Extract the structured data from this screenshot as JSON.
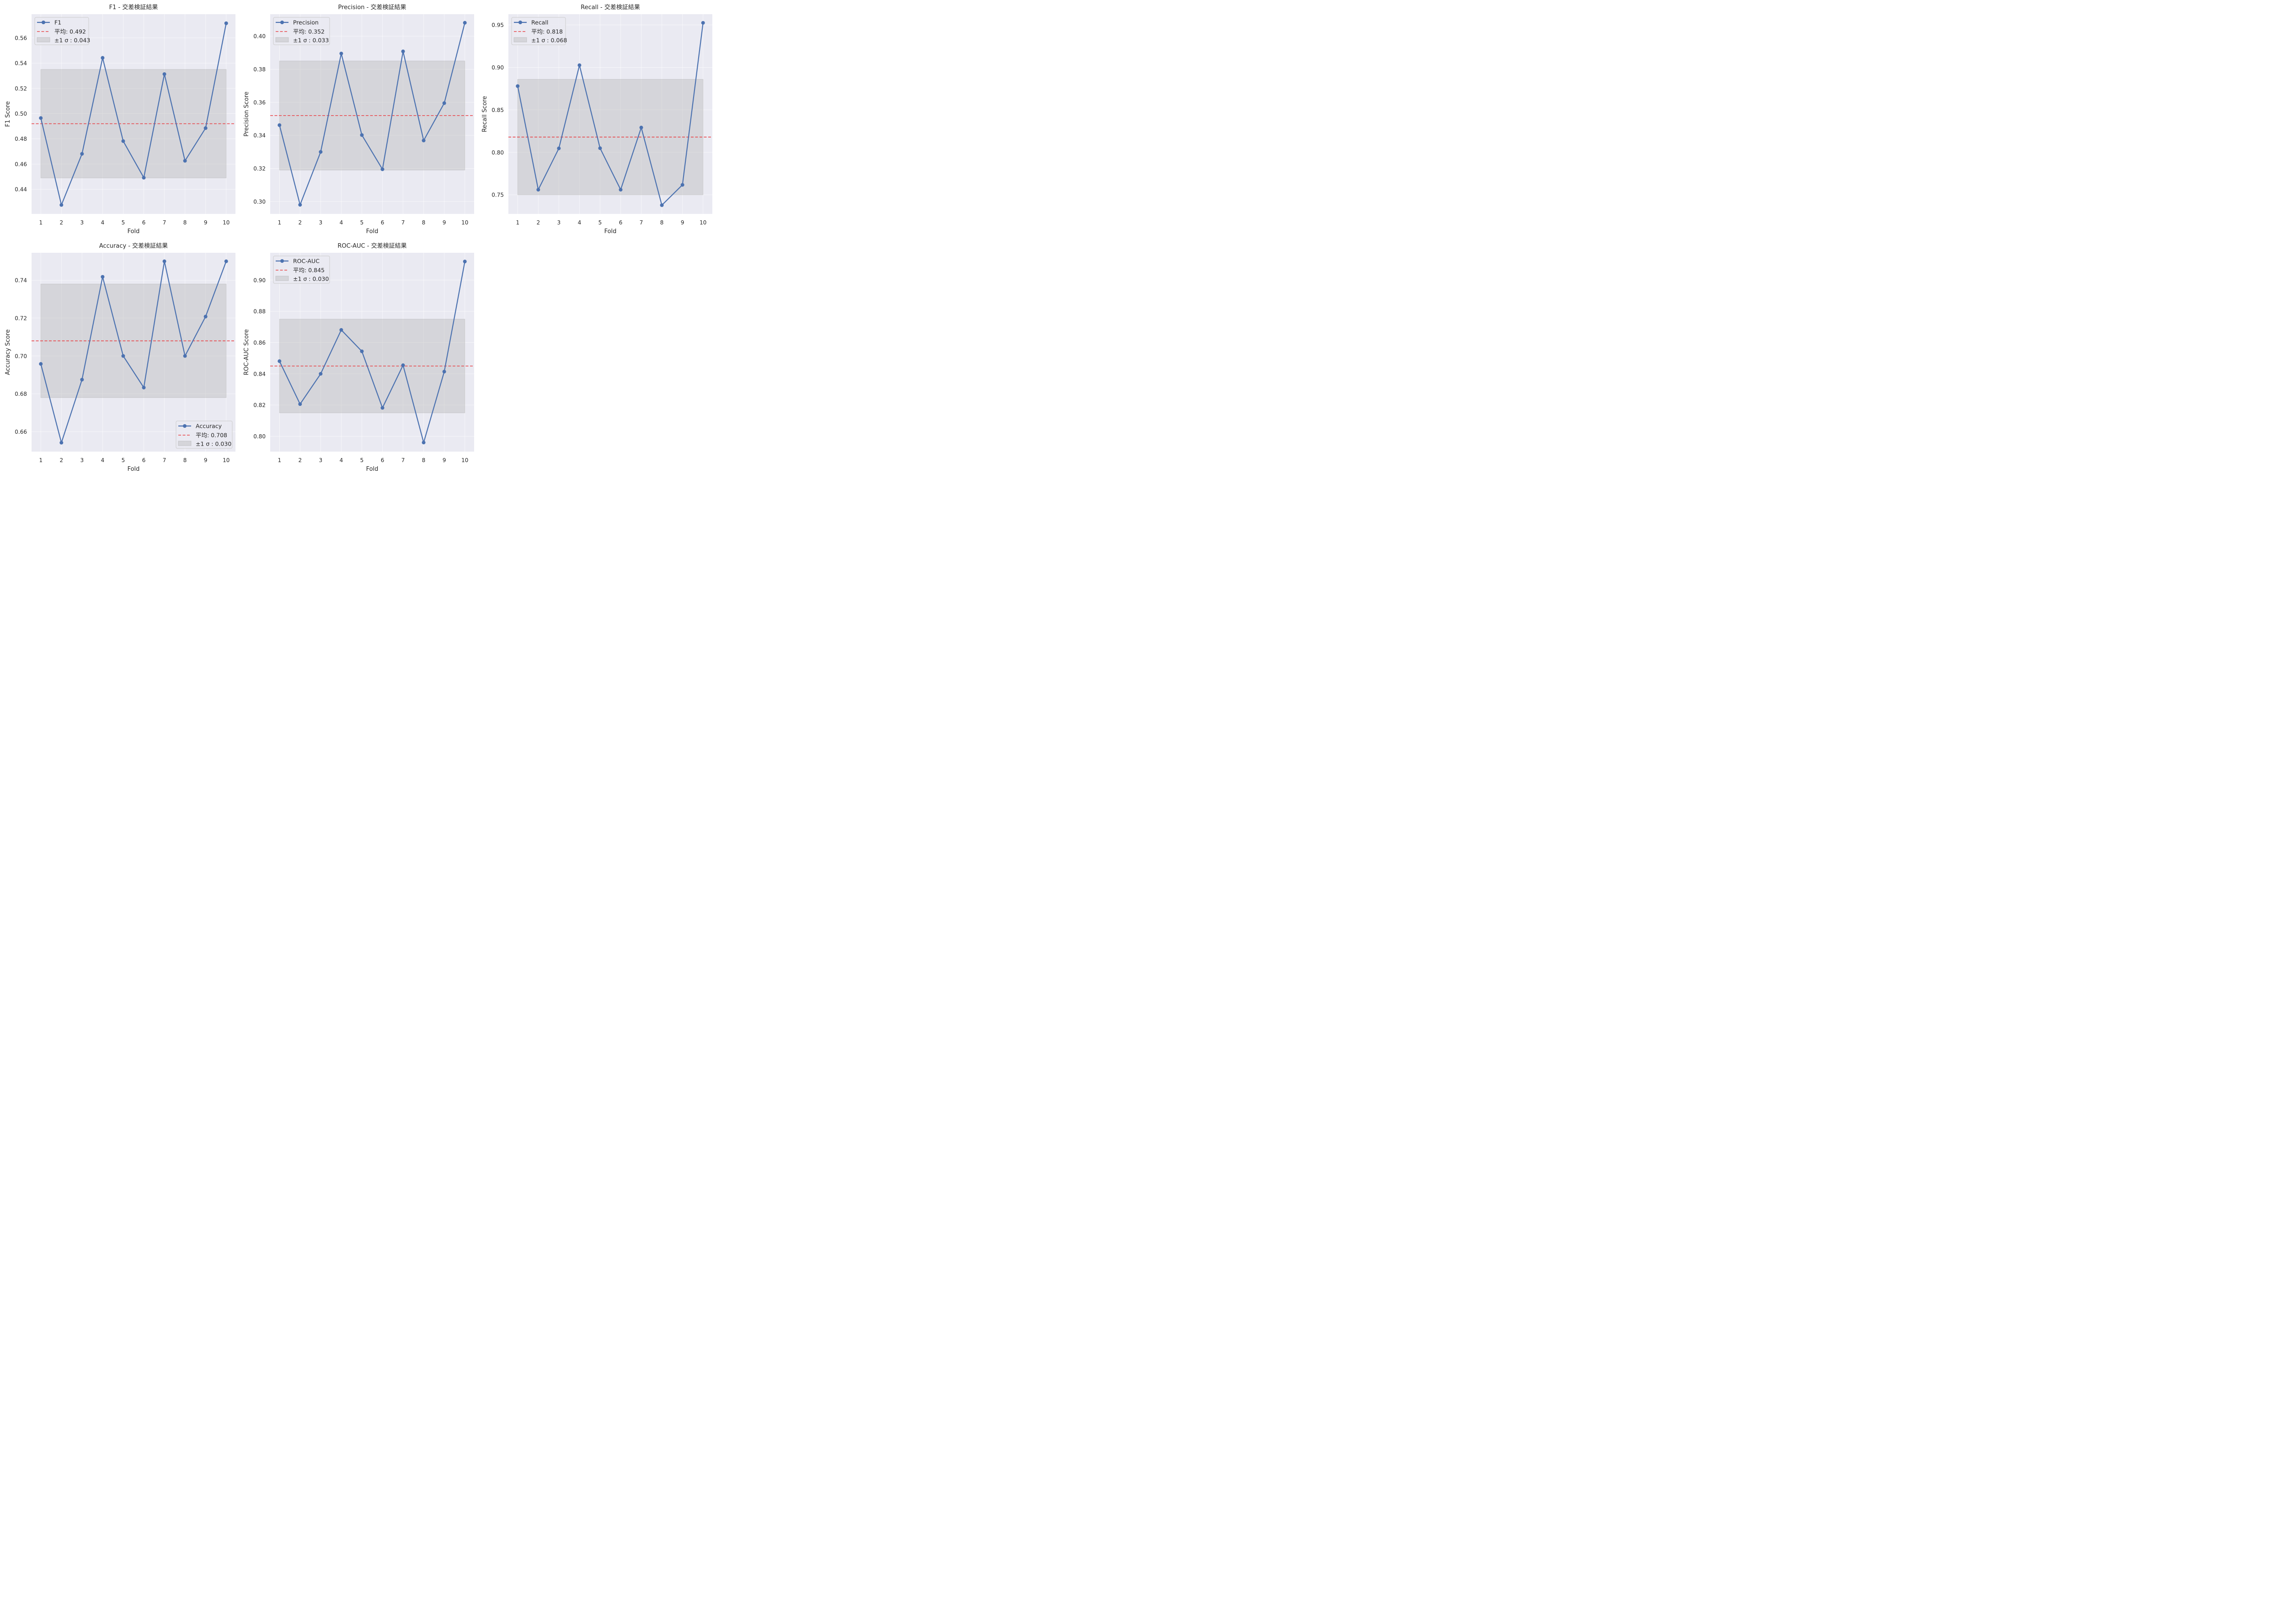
{
  "figure": {
    "colors": {
      "axes_background": "#EAEAF2",
      "grid": "#FFFFFF",
      "series_line": "#4C72B0",
      "mean_line": "#E8474B",
      "band_fill": "#BDBDBD",
      "text": "#262626"
    }
  },
  "chart_data": [
    {
      "type": "line",
      "title": "F1 - 交差検証結果",
      "xlabel": "Fold",
      "ylabel": "F1 Score",
      "x": [
        1,
        2,
        3,
        4,
        5,
        6,
        7,
        8,
        9,
        10
      ],
      "series": [
        {
          "name": "F1",
          "values": [
            0.4965,
            0.4276,
            0.4681,
            0.5442,
            0.4782,
            0.4492,
            0.5313,
            0.4626,
            0.4885,
            0.5716
          ]
        }
      ],
      "mean": 0.492,
      "std": 0.043,
      "legend": [
        "F1",
        "平均: 0.492",
        "±1 σ : 0.043"
      ],
      "legend_position": "upper-left",
      "ylim": [
        0.4205,
        0.5788
      ],
      "yticks": [
        0.44,
        0.46,
        0.48,
        0.5,
        0.52,
        0.54,
        0.56
      ],
      "ytick_labels": [
        "0.44",
        "0.46",
        "0.48",
        "0.50",
        "0.52",
        "0.54",
        "0.56"
      ],
      "xticks": [
        1,
        2,
        3,
        4,
        5,
        6,
        7,
        8,
        9,
        10
      ],
      "grid": true
    },
    {
      "type": "line",
      "title": "Precision - 交差検証結果",
      "xlabel": "Fold",
      "ylabel": "Precision Score",
      "x": [
        1,
        2,
        3,
        4,
        5,
        6,
        7,
        8,
        9,
        10
      ],
      "series": [
        {
          "name": "Precision",
          "values": [
            0.3462,
            0.298,
            0.33,
            0.3895,
            0.3402,
            0.3195,
            0.3908,
            0.3369,
            0.3595,
            0.4081
          ]
        }
      ],
      "mean": 0.352,
      "std": 0.033,
      "legend": [
        "Precision",
        "平均: 0.352",
        "±1 σ : 0.033"
      ],
      "legend_position": "upper-left",
      "ylim": [
        0.2925,
        0.4133
      ],
      "yticks": [
        0.3,
        0.32,
        0.34,
        0.36,
        0.38,
        0.4
      ],
      "ytick_labels": [
        "0.30",
        "0.32",
        "0.34",
        "0.36",
        "0.38",
        "0.40"
      ],
      "xticks": [
        1,
        2,
        3,
        4,
        5,
        6,
        7,
        8,
        9,
        10
      ],
      "grid": true
    },
    {
      "type": "line",
      "title": "Recall - 交差検証結果",
      "xlabel": "Fold",
      "ylabel": "Recall Score",
      "x": [
        1,
        2,
        3,
        4,
        5,
        6,
        7,
        8,
        9,
        10
      ],
      "series": [
        {
          "name": "Recall",
          "values": [
            0.878,
            0.756,
            0.8047,
            0.9026,
            0.8049,
            0.756,
            0.8292,
            0.7378,
            0.7617,
            0.9525
          ]
        }
      ],
      "mean": 0.818,
      "std": 0.068,
      "legend": [
        "Recall",
        "平均: 0.818",
        "±1 σ : 0.068"
      ],
      "legend_position": "upper-left",
      "ylim": [
        0.7275,
        0.9627
      ],
      "yticks": [
        0.75,
        0.8,
        0.85,
        0.9,
        0.95
      ],
      "ytick_labels": [
        "0.75",
        "0.80",
        "0.85",
        "0.90",
        "0.95"
      ],
      "xticks": [
        1,
        2,
        3,
        4,
        5,
        6,
        7,
        8,
        9,
        10
      ],
      "grid": true
    },
    {
      "type": "line",
      "title": "Accuracy - 交差検証結果",
      "xlabel": "Fold",
      "ylabel": "Accuracy Score",
      "x": [
        1,
        2,
        3,
        4,
        5,
        6,
        7,
        8,
        9,
        10
      ],
      "series": [
        {
          "name": "Accuracy",
          "values": [
            0.6958,
            0.6542,
            0.6875,
            0.7418,
            0.7,
            0.6833,
            0.75,
            0.7,
            0.7208,
            0.75
          ]
        }
      ],
      "mean": 0.708,
      "std": 0.03,
      "legend": [
        "Accuracy",
        "平均: 0.708",
        "±1 σ : 0.030"
      ],
      "legend_position": "lower-right",
      "ylim": [
        0.6495,
        0.7545
      ],
      "yticks": [
        0.66,
        0.68,
        0.7,
        0.72,
        0.74
      ],
      "ytick_labels": [
        "0.66",
        "0.68",
        "0.70",
        "0.72",
        "0.74"
      ],
      "xticks": [
        1,
        2,
        3,
        4,
        5,
        6,
        7,
        8,
        9,
        10
      ],
      "grid": true
    },
    {
      "type": "line",
      "title": "ROC-AUC - 交差検証結果",
      "xlabel": "Fold",
      "ylabel": "ROC-AUC Score",
      "x": [
        1,
        2,
        3,
        4,
        5,
        6,
        7,
        8,
        9,
        10
      ],
      "series": [
        {
          "name": "ROC-AUC",
          "values": [
            0.8481,
            0.8206,
            0.84,
            0.8681,
            0.8544,
            0.8182,
            0.8455,
            0.796,
            0.8414,
            0.9119
          ]
        }
      ],
      "mean": 0.845,
      "std": 0.03,
      "legend": [
        "ROC-AUC",
        "平均: 0.845",
        "±1 σ : 0.030"
      ],
      "legend_position": "upper-left",
      "ylim": [
        0.7902,
        0.9175
      ],
      "yticks": [
        0.8,
        0.82,
        0.84,
        0.86,
        0.88,
        0.9
      ],
      "ytick_labels": [
        "0.80",
        "0.82",
        "0.84",
        "0.86",
        "0.88",
        "0.90"
      ],
      "xticks": [
        1,
        2,
        3,
        4,
        5,
        6,
        7,
        8,
        9,
        10
      ],
      "grid": true
    }
  ]
}
